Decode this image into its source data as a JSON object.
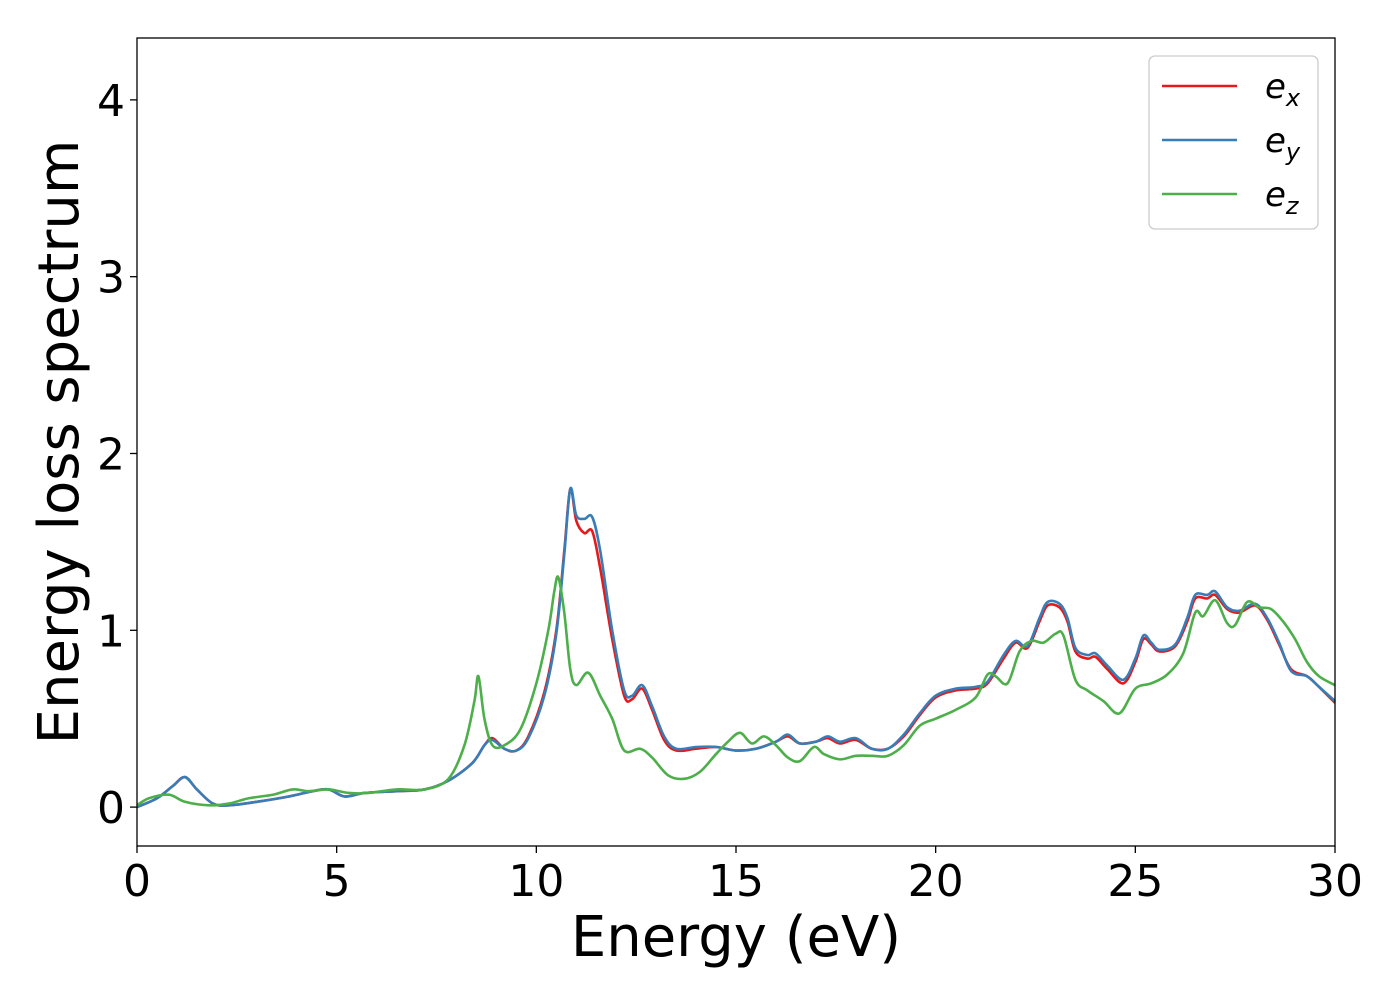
{
  "chart_data": {
    "type": "line",
    "title": "",
    "xlabel": "Energy (eV)",
    "ylabel": "Energy loss spectrum",
    "xlim": [
      0,
      30
    ],
    "ylim": [
      -0.22,
      4.35
    ],
    "x_ticks": [
      0,
      5,
      10,
      15,
      20,
      25,
      30
    ],
    "x_tick_labels": [
      "0",
      "5",
      "10",
      "15",
      "20",
      "25",
      "30"
    ],
    "y_ticks": [
      0,
      1,
      2,
      3,
      4
    ],
    "y_tick_labels": [
      "0",
      "1",
      "2",
      "3",
      "4"
    ],
    "grid": false,
    "legend": {
      "position": "top-right"
    },
    "series": [
      {
        "name": "e_x",
        "base": "e",
        "sub": "x",
        "color": "#e41a1c",
        "points": [
          [
            0,
            0
          ],
          [
            0.5,
            0.05
          ],
          [
            0.9,
            0.12
          ],
          [
            1.2,
            0.17
          ],
          [
            1.5,
            0.1
          ],
          [
            1.9,
            0.02
          ],
          [
            2.3,
            0.01
          ],
          [
            3,
            0.03
          ],
          [
            3.8,
            0.06
          ],
          [
            4.4,
            0.09
          ],
          [
            4.8,
            0.1
          ],
          [
            5.2,
            0.06
          ],
          [
            5.7,
            0.08
          ],
          [
            6.5,
            0.09
          ],
          [
            7.2,
            0.1
          ],
          [
            7.8,
            0.15
          ],
          [
            8.4,
            0.25
          ],
          [
            8.7,
            0.35
          ],
          [
            8.9,
            0.39
          ],
          [
            9.2,
            0.33
          ],
          [
            9.5,
            0.32
          ],
          [
            9.8,
            0.4
          ],
          [
            10.2,
            0.65
          ],
          [
            10.5,
            1.0
          ],
          [
            10.7,
            1.45
          ],
          [
            10.85,
            1.8
          ],
          [
            11.0,
            1.62
          ],
          [
            11.2,
            1.55
          ],
          [
            11.4,
            1.56
          ],
          [
            11.6,
            1.35
          ],
          [
            11.9,
            0.95
          ],
          [
            12.2,
            0.63
          ],
          [
            12.4,
            0.61
          ],
          [
            12.65,
            0.67
          ],
          [
            12.9,
            0.55
          ],
          [
            13.2,
            0.38
          ],
          [
            13.5,
            0.32
          ],
          [
            14.0,
            0.33
          ],
          [
            14.5,
            0.34
          ],
          [
            15.0,
            0.32
          ],
          [
            15.5,
            0.33
          ],
          [
            16.0,
            0.37
          ],
          [
            16.3,
            0.4
          ],
          [
            16.6,
            0.36
          ],
          [
            17.0,
            0.37
          ],
          [
            17.3,
            0.39
          ],
          [
            17.6,
            0.36
          ],
          [
            18.0,
            0.38
          ],
          [
            18.4,
            0.33
          ],
          [
            18.8,
            0.33
          ],
          [
            19.2,
            0.4
          ],
          [
            19.6,
            0.52
          ],
          [
            20.0,
            0.62
          ],
          [
            20.5,
            0.66
          ],
          [
            21.0,
            0.67
          ],
          [
            21.3,
            0.7
          ],
          [
            21.7,
            0.84
          ],
          [
            22.0,
            0.93
          ],
          [
            22.3,
            0.9
          ],
          [
            22.6,
            1.05
          ],
          [
            22.8,
            1.14
          ],
          [
            23.1,
            1.13
          ],
          [
            23.3,
            1.05
          ],
          [
            23.5,
            0.88
          ],
          [
            23.8,
            0.84
          ],
          [
            24.0,
            0.85
          ],
          [
            24.3,
            0.78
          ],
          [
            24.7,
            0.7
          ],
          [
            25.0,
            0.82
          ],
          [
            25.2,
            0.95
          ],
          [
            25.4,
            0.92
          ],
          [
            25.6,
            0.88
          ],
          [
            26.0,
            0.91
          ],
          [
            26.3,
            1.05
          ],
          [
            26.5,
            1.18
          ],
          [
            26.8,
            1.18
          ],
          [
            27.0,
            1.2
          ],
          [
            27.3,
            1.12
          ],
          [
            27.6,
            1.1
          ],
          [
            28.0,
            1.14
          ],
          [
            28.3,
            1.06
          ],
          [
            28.6,
            0.92
          ],
          [
            28.9,
            0.78
          ],
          [
            29.3,
            0.74
          ],
          [
            29.6,
            0.68
          ],
          [
            30.0,
            0.59
          ]
        ]
      },
      {
        "name": "e_y",
        "base": "e",
        "sub": "y",
        "color": "#377eb8",
        "points": [
          [
            0,
            0
          ],
          [
            0.5,
            0.05
          ],
          [
            0.9,
            0.12
          ],
          [
            1.2,
            0.17
          ],
          [
            1.5,
            0.1
          ],
          [
            1.9,
            0.02
          ],
          [
            2.3,
            0.01
          ],
          [
            3,
            0.03
          ],
          [
            3.8,
            0.06
          ],
          [
            4.4,
            0.09
          ],
          [
            4.8,
            0.1
          ],
          [
            5.2,
            0.06
          ],
          [
            5.7,
            0.08
          ],
          [
            6.5,
            0.09
          ],
          [
            7.2,
            0.1
          ],
          [
            7.8,
            0.15
          ],
          [
            8.4,
            0.25
          ],
          [
            8.7,
            0.35
          ],
          [
            8.9,
            0.38
          ],
          [
            9.2,
            0.33
          ],
          [
            9.5,
            0.32
          ],
          [
            9.8,
            0.39
          ],
          [
            10.2,
            0.63
          ],
          [
            10.5,
            0.98
          ],
          [
            10.7,
            1.43
          ],
          [
            10.85,
            1.8
          ],
          [
            11.0,
            1.65
          ],
          [
            11.2,
            1.63
          ],
          [
            11.4,
            1.64
          ],
          [
            11.6,
            1.45
          ],
          [
            11.9,
            1.0
          ],
          [
            12.2,
            0.66
          ],
          [
            12.4,
            0.63
          ],
          [
            12.65,
            0.69
          ],
          [
            12.9,
            0.57
          ],
          [
            13.2,
            0.4
          ],
          [
            13.5,
            0.33
          ],
          [
            14.0,
            0.34
          ],
          [
            14.5,
            0.34
          ],
          [
            15.0,
            0.32
          ],
          [
            15.5,
            0.33
          ],
          [
            16.0,
            0.37
          ],
          [
            16.3,
            0.41
          ],
          [
            16.6,
            0.36
          ],
          [
            17.0,
            0.37
          ],
          [
            17.3,
            0.4
          ],
          [
            17.6,
            0.37
          ],
          [
            18.0,
            0.39
          ],
          [
            18.4,
            0.33
          ],
          [
            18.8,
            0.33
          ],
          [
            19.2,
            0.41
          ],
          [
            19.6,
            0.53
          ],
          [
            20.0,
            0.63
          ],
          [
            20.5,
            0.67
          ],
          [
            21.0,
            0.68
          ],
          [
            21.3,
            0.71
          ],
          [
            21.7,
            0.86
          ],
          [
            22.0,
            0.94
          ],
          [
            22.3,
            0.91
          ],
          [
            22.6,
            1.07
          ],
          [
            22.8,
            1.16
          ],
          [
            23.1,
            1.15
          ],
          [
            23.3,
            1.07
          ],
          [
            23.5,
            0.9
          ],
          [
            23.8,
            0.86
          ],
          [
            24.0,
            0.87
          ],
          [
            24.3,
            0.8
          ],
          [
            24.7,
            0.72
          ],
          [
            25.0,
            0.84
          ],
          [
            25.2,
            0.97
          ],
          [
            25.4,
            0.93
          ],
          [
            25.6,
            0.89
          ],
          [
            26.0,
            0.92
          ],
          [
            26.3,
            1.07
          ],
          [
            26.5,
            1.2
          ],
          [
            26.8,
            1.2
          ],
          [
            27.0,
            1.22
          ],
          [
            27.3,
            1.13
          ],
          [
            27.6,
            1.11
          ],
          [
            28.0,
            1.15
          ],
          [
            28.3,
            1.07
          ],
          [
            28.6,
            0.93
          ],
          [
            28.9,
            0.77
          ],
          [
            29.3,
            0.74
          ],
          [
            29.6,
            0.68
          ],
          [
            30.0,
            0.6
          ]
        ]
      },
      {
        "name": "e_z",
        "base": "e",
        "sub": "z",
        "color": "#4daf4a",
        "points": [
          [
            0,
            0.01
          ],
          [
            0.3,
            0.05
          ],
          [
            0.8,
            0.07
          ],
          [
            1.2,
            0.03
          ],
          [
            1.8,
            0.01
          ],
          [
            2.3,
            0.02
          ],
          [
            2.8,
            0.05
          ],
          [
            3.4,
            0.07
          ],
          [
            3.9,
            0.1
          ],
          [
            4.3,
            0.09
          ],
          [
            4.8,
            0.1
          ],
          [
            5.3,
            0.08
          ],
          [
            5.8,
            0.08
          ],
          [
            6.5,
            0.1
          ],
          [
            7.2,
            0.1
          ],
          [
            7.8,
            0.16
          ],
          [
            8.2,
            0.35
          ],
          [
            8.45,
            0.6
          ],
          [
            8.55,
            0.74
          ],
          [
            8.7,
            0.5
          ],
          [
            8.9,
            0.35
          ],
          [
            9.2,
            0.35
          ],
          [
            9.6,
            0.44
          ],
          [
            10.0,
            0.7
          ],
          [
            10.3,
            1.0
          ],
          [
            10.45,
            1.22
          ],
          [
            10.55,
            1.3
          ],
          [
            10.7,
            1.1
          ],
          [
            10.85,
            0.78
          ],
          [
            11.0,
            0.69
          ],
          [
            11.3,
            0.76
          ],
          [
            11.6,
            0.63
          ],
          [
            11.9,
            0.5
          ],
          [
            12.2,
            0.32
          ],
          [
            12.6,
            0.33
          ],
          [
            12.9,
            0.28
          ],
          [
            13.3,
            0.18
          ],
          [
            13.7,
            0.16
          ],
          [
            14.1,
            0.2
          ],
          [
            14.5,
            0.3
          ],
          [
            14.8,
            0.37
          ],
          [
            15.1,
            0.42
          ],
          [
            15.4,
            0.36
          ],
          [
            15.7,
            0.4
          ],
          [
            16.0,
            0.35
          ],
          [
            16.3,
            0.28
          ],
          [
            16.6,
            0.26
          ],
          [
            16.95,
            0.34
          ],
          [
            17.2,
            0.3
          ],
          [
            17.6,
            0.27
          ],
          [
            18.0,
            0.29
          ],
          [
            18.4,
            0.29
          ],
          [
            18.8,
            0.29
          ],
          [
            19.2,
            0.35
          ],
          [
            19.6,
            0.46
          ],
          [
            20.0,
            0.5
          ],
          [
            20.5,
            0.55
          ],
          [
            21.0,
            0.62
          ],
          [
            21.3,
            0.75
          ],
          [
            21.5,
            0.74
          ],
          [
            21.8,
            0.7
          ],
          [
            22.1,
            0.88
          ],
          [
            22.4,
            0.94
          ],
          [
            22.7,
            0.93
          ],
          [
            23.0,
            0.98
          ],
          [
            23.2,
            0.97
          ],
          [
            23.5,
            0.72
          ],
          [
            23.8,
            0.66
          ],
          [
            24.2,
            0.6
          ],
          [
            24.6,
            0.53
          ],
          [
            25.0,
            0.67
          ],
          [
            25.4,
            0.7
          ],
          [
            25.8,
            0.75
          ],
          [
            26.2,
            0.87
          ],
          [
            26.5,
            1.1
          ],
          [
            26.7,
            1.08
          ],
          [
            27.0,
            1.17
          ],
          [
            27.3,
            1.04
          ],
          [
            27.5,
            1.03
          ],
          [
            27.8,
            1.16
          ],
          [
            28.1,
            1.13
          ],
          [
            28.4,
            1.12
          ],
          [
            28.7,
            1.05
          ],
          [
            29.0,
            0.95
          ],
          [
            29.3,
            0.82
          ],
          [
            29.6,
            0.74
          ],
          [
            30.0,
            0.69
          ]
        ]
      }
    ]
  }
}
